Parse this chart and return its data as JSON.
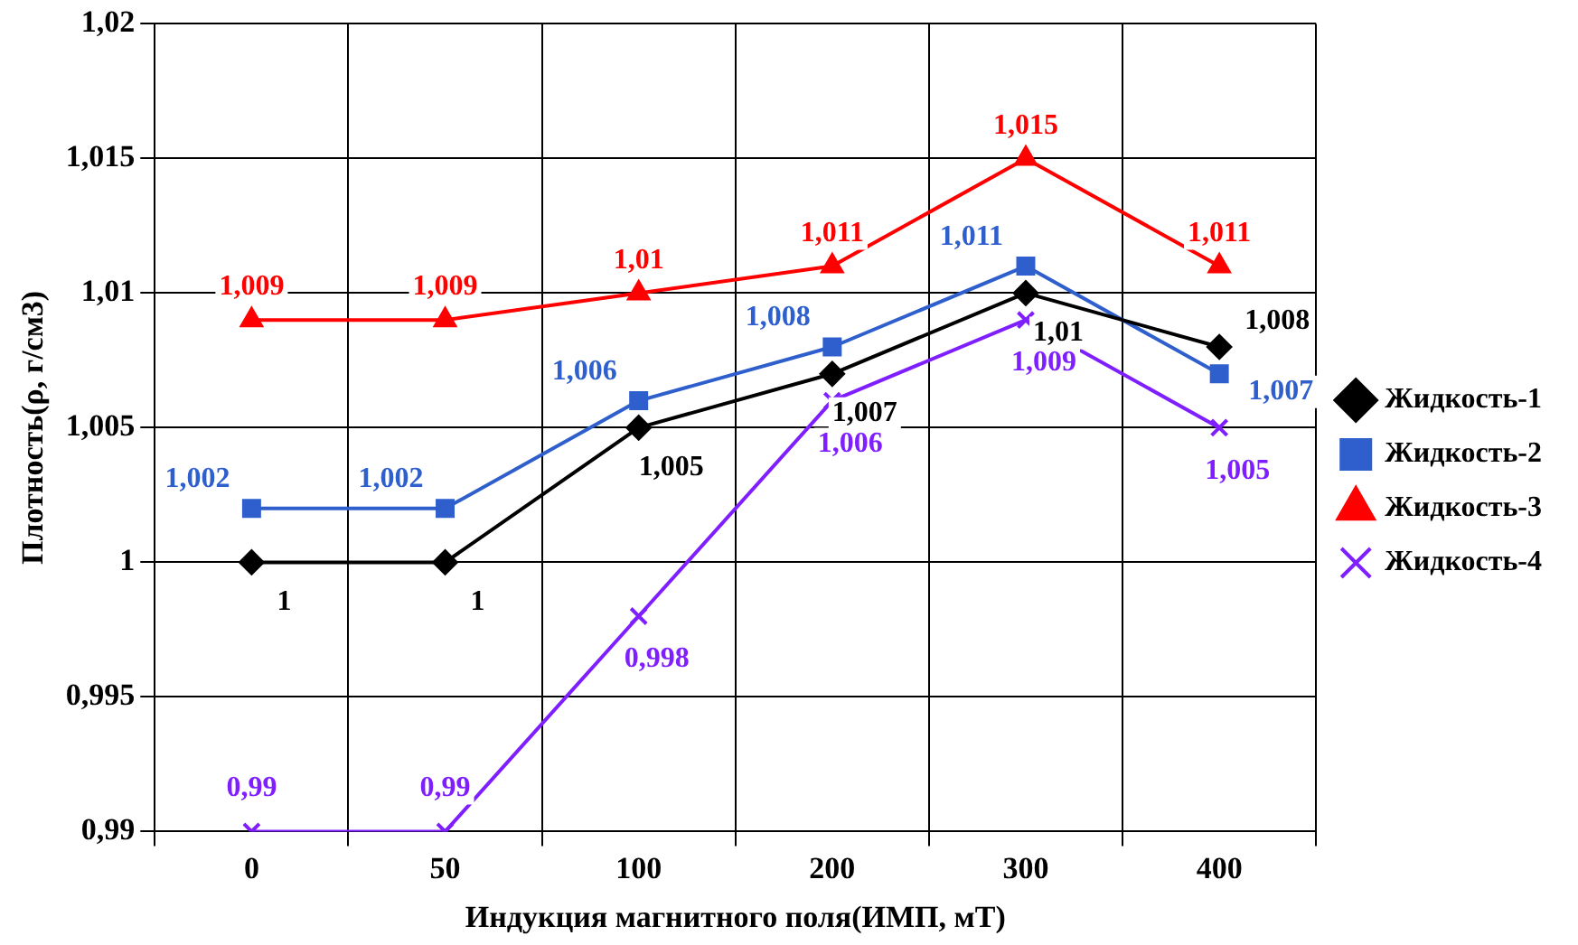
{
  "chart_data": {
    "type": "line",
    "xlabel": "Индукция магнитного поля(ИМП, мТ)",
    "ylabel": "Плотность(ρ, г/см3)",
    "categories": [
      "0",
      "50",
      "100",
      "200",
      "300",
      "400"
    ],
    "ylim": [
      0.99,
      1.02
    ],
    "yticks": [
      {
        "value": 0.99,
        "label": "0,99"
      },
      {
        "value": 0.995,
        "label": "0,995"
      },
      {
        "value": 1,
        "label": "1"
      },
      {
        "value": 1.005,
        "label": "1,005"
      },
      {
        "value": 1.01,
        "label": "1,01"
      },
      {
        "value": 1.015,
        "label": "1,015"
      },
      {
        "value": 1.02,
        "label": "1,02"
      }
    ],
    "grid": true,
    "legend": "right",
    "line_style": "solid",
    "series": [
      {
        "name": "Жидкость-1",
        "color": "#000000",
        "marker": "diamond",
        "values": [
          1,
          1,
          1.005,
          1.007,
          1.01,
          1.008
        ],
        "value_labels": [
          "1",
          "1",
          "1,005",
          "1,007",
          "1,01",
          "1,008"
        ]
      },
      {
        "name": "Жидкость-2",
        "color": "#2e5fcc",
        "marker": "square",
        "values": [
          1.002,
          1.002,
          1.006,
          1.008,
          1.011,
          1.007
        ],
        "value_labels": [
          "1,002",
          "1,002",
          "1,006",
          "1,008",
          "1,011",
          "1,007"
        ]
      },
      {
        "name": "Жидкость-3",
        "color": "#ff0000",
        "marker": "triangle",
        "values": [
          1.009,
          1.009,
          1.01,
          1.011,
          1.015,
          1.011
        ],
        "value_labels": [
          "1,009",
          "1,009",
          "1,01",
          "1,011",
          "1,015",
          "1,011"
        ]
      },
      {
        "name": "Жидкость-4",
        "color": "#7f1fff",
        "marker": "cross",
        "values": [
          0.99,
          0.99,
          0.998,
          1.006,
          1.009,
          1.005
        ],
        "value_labels": [
          "0,99",
          "0,99",
          "0,998",
          "1,006",
          "1,009",
          "1,005"
        ]
      }
    ]
  }
}
